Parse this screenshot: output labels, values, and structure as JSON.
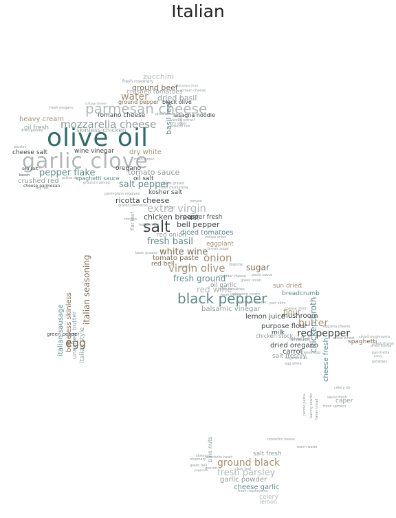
{
  "title": "Italian",
  "palette": {
    "teal": "#2f6b6b",
    "slate": "#5b8a8a",
    "gray": "#8f9a9a",
    "silver": "#b2b8b8",
    "tan": "#a39072",
    "brown": "#7a6a52",
    "dark": "#3b4444"
  },
  "words": [
    {
      "text": "olive oil",
      "color": "teal"
    },
    {
      "text": "garlic clove",
      "color": "silver"
    },
    {
      "text": "parmesan cheese",
      "color": "silver"
    },
    {
      "text": "black pepper",
      "color": "slate"
    },
    {
      "text": "salt",
      "color": "dark"
    },
    {
      "text": "mozzarella cheese",
      "color": "gray"
    },
    {
      "text": "virgin olive",
      "color": "tan"
    },
    {
      "text": "extra virgin",
      "color": "silver"
    },
    {
      "text": "onion",
      "color": "tan"
    },
    {
      "text": "butter",
      "color": "tan"
    },
    {
      "text": "red pepper",
      "color": "dark"
    },
    {
      "text": "egg",
      "color": "brown"
    },
    {
      "text": "water",
      "color": "tan"
    },
    {
      "text": "salt pepper",
      "color": "slate"
    },
    {
      "text": "pepper flake",
      "color": "slate"
    },
    {
      "text": "fresh basil",
      "color": "slate"
    },
    {
      "text": "white wine",
      "color": "brown"
    },
    {
      "text": "fresh ground",
      "color": "slate"
    },
    {
      "text": "ground black",
      "color": "tan"
    },
    {
      "text": "fresh parsley",
      "color": "silver"
    },
    {
      "text": "tomato sauce",
      "color": "gray"
    },
    {
      "text": "chicken breast",
      "color": "dark"
    },
    {
      "text": "ricotta cheese",
      "color": "dark"
    },
    {
      "text": "italian seasoning",
      "color": "brown"
    },
    {
      "text": "sugar",
      "color": "brown"
    },
    {
      "text": "red wine",
      "color": "silver"
    },
    {
      "text": "ground beef",
      "color": "brown"
    },
    {
      "text": "dried basil",
      "color": "gray"
    },
    {
      "text": "zucchini",
      "color": "silver"
    },
    {
      "text": "crushed tomatoes",
      "color": "gray"
    },
    {
      "text": "romano cheese",
      "color": "dark"
    },
    {
      "text": "skinless chicken",
      "color": "gray"
    },
    {
      "text": "heavy cream",
      "color": "tan"
    },
    {
      "text": "oil fresh",
      "color": "gray"
    },
    {
      "text": "cheese salt",
      "color": "dark"
    },
    {
      "text": "wine vinegar",
      "color": "dark"
    },
    {
      "text": "dry white",
      "color": "tan"
    },
    {
      "text": "basil leaf",
      "color": "slate"
    },
    {
      "text": "crushed red",
      "color": "gray"
    },
    {
      "text": "oregano",
      "color": "dark"
    },
    {
      "text": "oil salt",
      "color": "dark"
    },
    {
      "text": "spaghetti sauce",
      "color": "slate"
    },
    {
      "text": "kosher salt",
      "color": "dark"
    },
    {
      "text": "tomato paste",
      "color": "brown"
    },
    {
      "text": "bell pepper",
      "color": "dark"
    },
    {
      "text": "pepper fresh",
      "color": "dark"
    },
    {
      "text": "diced tomatoes",
      "color": "slate"
    },
    {
      "text": "red onion",
      "color": "gray"
    },
    {
      "text": "eggplant",
      "color": "tan"
    },
    {
      "text": "red bell",
      "color": "brown"
    },
    {
      "text": "oil garlic",
      "color": "gray"
    },
    {
      "text": "balsamic vinegar",
      "color": "gray"
    },
    {
      "text": "flour",
      "color": "tan"
    },
    {
      "text": "lemon juice",
      "color": "dark"
    },
    {
      "text": "mushroom",
      "color": "dark"
    },
    {
      "text": "purpose flour",
      "color": "dark"
    },
    {
      "text": "milk",
      "color": "dark"
    },
    {
      "text": "chicken stock",
      "color": "gray"
    },
    {
      "text": "dried oregano",
      "color": "dark"
    },
    {
      "text": "carrot",
      "color": "dark"
    },
    {
      "text": "salt freshly",
      "color": "gray"
    },
    {
      "text": "shallot",
      "color": "gray"
    },
    {
      "text": "spaghetti",
      "color": "brown"
    },
    {
      "text": "sun dried",
      "color": "tan"
    },
    {
      "text": "breadcrumb",
      "color": "slate"
    },
    {
      "text": "chicken broth",
      "color": "slate"
    },
    {
      "text": "cheese fresh",
      "color": "slate"
    },
    {
      "text": "caper",
      "color": "gray"
    },
    {
      "text": "italian sausage",
      "color": "slate"
    },
    {
      "text": "boneless skinless",
      "color": "brown"
    },
    {
      "text": "unsalted butter",
      "color": "gray"
    },
    {
      "text": "italian style",
      "color": "gray"
    },
    {
      "text": "green pepper",
      "color": "dark"
    },
    {
      "text": "salt fresh",
      "color": "gray"
    },
    {
      "text": "garlic powder",
      "color": "gray"
    },
    {
      "text": "cheese garlic",
      "color": "slate"
    },
    {
      "text": "celery",
      "color": "silver"
    },
    {
      "text": "lemon",
      "color": "silver"
    },
    {
      "text": "pine nuts",
      "color": "gray"
    },
    {
      "text": "fresh rosemary",
      "color": "gray"
    },
    {
      "text": "ground pepper",
      "color": "brown"
    },
    {
      "text": "black olive",
      "color": "dark"
    },
    {
      "text": "lasagna noodle",
      "color": "dark"
    },
    {
      "text": "cream cheese",
      "color": "gray"
    },
    {
      "text": "fresh oregano",
      "color": "gray"
    },
    {
      "text": "cottage cheese",
      "color": "gray"
    },
    {
      "text": "dried parsley",
      "color": "gray"
    },
    {
      "text": "sea salt",
      "color": "dark"
    },
    {
      "text": "parsley",
      "color": "gray"
    },
    {
      "text": "bacon",
      "color": "dark"
    },
    {
      "text": "cheese parmesan",
      "color": "dark"
    },
    {
      "text": "dry red",
      "color": "gray"
    },
    {
      "text": "parmigiano reggiano",
      "color": "gray"
    },
    {
      "text": "flat leaf",
      "color": "gray"
    },
    {
      "text": "vanilla extract",
      "color": "gray"
    },
    {
      "text": "arborio rice",
      "color": "gray"
    },
    {
      "text": "whipping cream",
      "color": "gray"
    },
    {
      "text": "provolone cheese",
      "color": "gray"
    },
    {
      "text": "cheese onion",
      "color": "gray"
    },
    {
      "text": "cheddar cheese",
      "color": "gray"
    },
    {
      "text": "plum tomatoes",
      "color": "gray"
    },
    {
      "text": "tomatoes fresh",
      "color": "gray"
    },
    {
      "text": "dry yeast",
      "color": "gray"
    },
    {
      "text": "green onion",
      "color": "gray"
    },
    {
      "text": "pesto sauce",
      "color": "gray"
    },
    {
      "text": "fresh thyme",
      "color": "gray"
    },
    {
      "text": "part skim",
      "color": "gray"
    },
    {
      "text": "linguine",
      "color": "gray"
    },
    {
      "text": "prosciutto",
      "color": "gray"
    },
    {
      "text": "garlic",
      "color": "gray"
    },
    {
      "text": "artichoke heart",
      "color": "gray"
    },
    {
      "text": "bay leaf",
      "color": "gray"
    },
    {
      "text": "cannellini beans",
      "color": "gray"
    },
    {
      "text": "fresh mushrooms",
      "color": "gray"
    },
    {
      "text": "ground",
      "color": "gray"
    },
    {
      "text": "rosemary",
      "color": "gray"
    },
    {
      "text": "green bell",
      "color": "gray"
    },
    {
      "text": "pepperoni",
      "color": "gray"
    },
    {
      "text": "shrimp",
      "color": "gray"
    },
    {
      "text": "warm water",
      "color": "gray"
    },
    {
      "text": "baking powder",
      "color": "gray"
    },
    {
      "text": "penne pasta",
      "color": "gray"
    },
    {
      "text": "italian bread",
      "color": "gray"
    },
    {
      "text": "celery rib",
      "color": "gray"
    },
    {
      "text": "sauce fresh",
      "color": "gray"
    },
    {
      "text": "fresh spinach",
      "color": "gray"
    },
    {
      "text": "potatoes",
      "color": "gray"
    },
    {
      "text": "honey",
      "color": "gray"
    },
    {
      "text": "panchetta",
      "color": "gray"
    },
    {
      "text": "fresh thyme",
      "color": "gray"
    },
    {
      "text": "sliced mushrooms",
      "color": "gray"
    },
    {
      "text": "whole wheat",
      "color": "gray"
    },
    {
      "text": "reggiano cheese",
      "color": "gray"
    },
    {
      "text": "vegetable oil",
      "color": "gray"
    },
    {
      "text": "egg white",
      "color": "gray"
    },
    {
      "text": "cheese egg",
      "color": "gray"
    },
    {
      "text": "roasted red",
      "color": "gray"
    },
    {
      "text": "dried thyme",
      "color": "gray"
    },
    {
      "text": "leaf parsley",
      "color": "gray"
    },
    {
      "text": "brown sugar",
      "color": "gray"
    },
    {
      "text": "bean ground",
      "color": "gray"
    },
    {
      "text": "yellow onion",
      "color": "gray"
    },
    {
      "text": "active dry",
      "color": "gray"
    },
    {
      "text": "tomato",
      "color": "gray"
    },
    {
      "text": "chicken",
      "color": "gray"
    },
    {
      "text": "paprika",
      "color": "gray"
    },
    {
      "text": "sliced",
      "color": "gray"
    },
    {
      "text": "ground nutmeg",
      "color": "gray"
    },
    {
      "text": "grated parmesan",
      "color": "gray"
    },
    {
      "text": "fresh lemon",
      "color": "gray"
    },
    {
      "text": "cheese grated",
      "color": "gray"
    },
    {
      "text": "fresh mozzarella",
      "color": "gray"
    }
  ]
}
